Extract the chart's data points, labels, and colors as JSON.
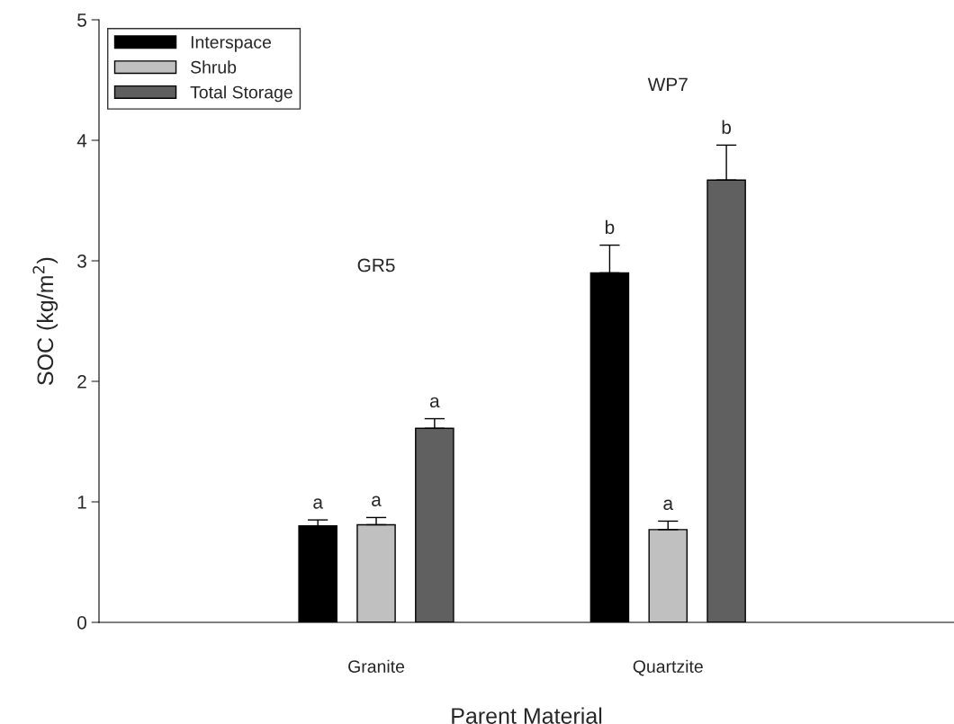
{
  "chart_data": {
    "type": "bar",
    "xlabel": "Parent Material",
    "ylabel": "SOC (kg/m$^{2}$)",
    "categories": [
      "Granite",
      "Quartzite"
    ],
    "series": [
      {
        "name": "Interspace",
        "color": "#000000",
        "values": [
          0.8,
          2.9
        ],
        "errors": [
          [
            0.8,
            0.85
          ],
          [
            2.9,
            3.13
          ]
        ],
        "value_labels": [
          "a",
          "b"
        ]
      },
      {
        "name": "Shrub",
        "color": "#c0c0c0",
        "values": [
          0.81,
          0.77
        ],
        "errors": [
          [
            0.81,
            0.87
          ],
          [
            0.77,
            0.84
          ]
        ],
        "value_labels": [
          "a",
          "a"
        ]
      },
      {
        "name": "Total Storage",
        "color": "#606060",
        "values": [
          1.61,
          3.67
        ],
        "errors": [
          [
            1.61,
            1.69
          ],
          [
            3.67,
            3.96
          ]
        ],
        "value_labels": [
          "a",
          "b"
        ]
      }
    ],
    "annotations": [
      "GR5",
      "WP7"
    ],
    "ylim": [
      0,
      5
    ],
    "yticks": [
      0,
      1,
      2,
      3,
      4,
      5
    ],
    "grid": false,
    "legend": "top left"
  }
}
